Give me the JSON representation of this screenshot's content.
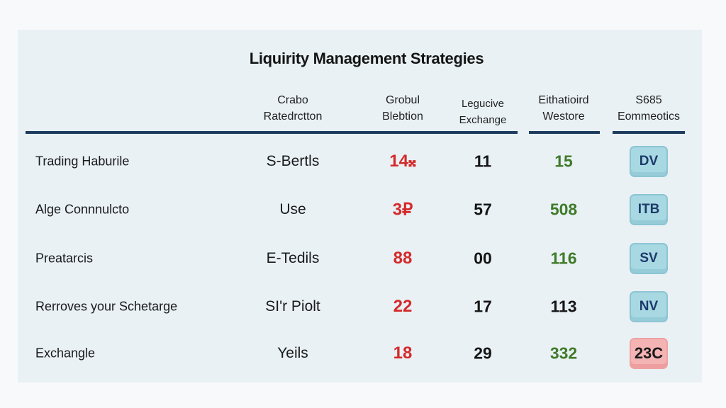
{
  "title": "Liquirity Management Strategies",
  "headers": [
    {
      "line1": "Crabo",
      "line2": "Ratedrctton"
    },
    {
      "line1": "Grobul",
      "line2": "Blebtion"
    },
    {
      "line1": "Legucive",
      "line2": "Exchange"
    },
    {
      "line1": "Eithatioird",
      "line2": "Westore"
    },
    {
      "line1": "S685",
      "line2": "Eommeotics"
    }
  ],
  "rows": [
    {
      "label": "Trading Haburile",
      "c1": "S-Bertls",
      "c2": "14𝄪",
      "c3": "11",
      "c4": "15",
      "badge": "DV",
      "badge_color": "#a8d8e2"
    },
    {
      "label": "Alge Connnulcto",
      "c1": "Use",
      "c2": "3₽",
      "c3": "57",
      "c4": "508",
      "badge": "ITB",
      "badge_color": "#a8d8e2"
    },
    {
      "label": "Preatarcis",
      "c1": "E-Tedils",
      "c2": "88",
      "c3": "00",
      "c4": "116",
      "badge": "SV",
      "badge_color": "#a8d8e2"
    },
    {
      "label": "Rerroves your Schetarge",
      "c1": "SI'r Piolt",
      "c2": "22",
      "c3": "17",
      "c4": "113",
      "badge": "NV",
      "badge_color": "#a8d8e2"
    },
    {
      "label": "Exchangle",
      "c1": "Yeils",
      "c2": "18",
      "c3": "29",
      "c4": "332",
      "badge": "23C",
      "badge_color": "#f5b4b4"
    }
  ],
  "colors": {
    "accent_red": "#d42a2a",
    "accent_green": "#3f7a28",
    "rule": "#1f3d5e"
  }
}
